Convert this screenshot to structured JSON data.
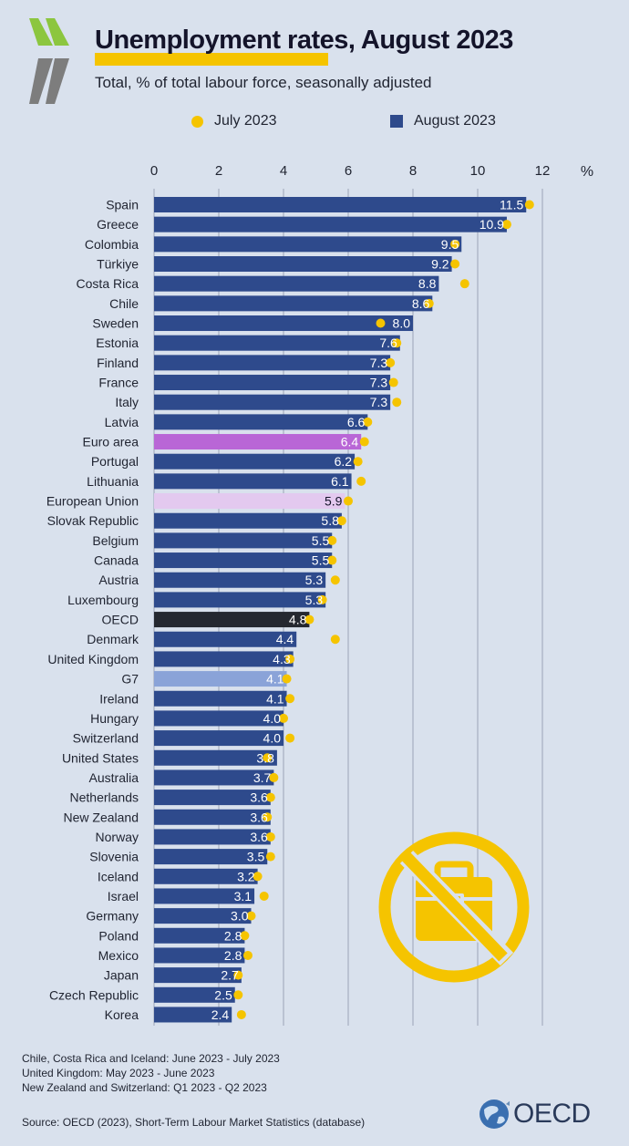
{
  "header": {
    "title": "Unemployment rates, August 2023",
    "subtitle": "Total, % of total labour force, seasonally adjusted"
  },
  "legend": {
    "july_label": "July 2023",
    "august_label": "August 2023"
  },
  "colors": {
    "bar_default": "#2e4a8c",
    "bar_euro_area": "#b966d6",
    "bar_european_union": "#e3c9ef",
    "bar_oecd": "#252830",
    "bar_g7": "#8aa3d8",
    "july_dot": "#f5c400",
    "background": "#d9e1ed",
    "grid": "#9aa4b6"
  },
  "chart_data": {
    "type": "bar",
    "orientation": "horizontal",
    "unit_label": "%",
    "xlim": [
      0,
      12
    ],
    "xticks": [
      0,
      2,
      4,
      6,
      8,
      10,
      12
    ],
    "grid": true,
    "legend_position": "top",
    "categories": [
      "Spain",
      "Greece",
      "Colombia",
      "Türkiye",
      "Costa Rica",
      "Chile",
      "Sweden",
      "Estonia",
      "Finland",
      "France",
      "Italy",
      "Latvia",
      "Euro area",
      "Portugal",
      "Lithuania",
      "European Union",
      "Slovak Republic",
      "Belgium",
      "Canada",
      "Austria",
      "Luxembourg",
      "OECD",
      "Denmark",
      "United Kingdom",
      "G7",
      "Ireland",
      "Hungary",
      "Switzerland",
      "United States",
      "Australia",
      "Netherlands",
      "New Zealand",
      "Norway",
      "Slovenia",
      "Iceland",
      "Israel",
      "Germany",
      "Poland",
      "Mexico",
      "Japan",
      "Czech Republic",
      "Korea"
    ],
    "series": [
      {
        "name": "August 2023",
        "marker": "bar",
        "values": [
          11.5,
          10.9,
          9.5,
          9.2,
          8.8,
          8.6,
          8.0,
          7.6,
          7.3,
          7.3,
          7.3,
          6.6,
          6.4,
          6.2,
          6.1,
          5.9,
          5.8,
          5.5,
          5.5,
          5.3,
          5.3,
          4.8,
          4.4,
          4.3,
          4.1,
          4.1,
          4.0,
          4.0,
          3.8,
          3.7,
          3.6,
          3.6,
          3.6,
          3.5,
          3.2,
          3.1,
          3.0,
          2.8,
          2.8,
          2.7,
          2.5,
          2.4
        ],
        "labels": [
          "11.5",
          "10.9",
          "9.5",
          "9.2",
          "8.8",
          "8.6",
          "8.0",
          "7.6",
          "7.3",
          "7.3",
          "7.3",
          "6.6",
          "6.4",
          "6.2",
          "6.1",
          "5.9",
          "5.8",
          "5.5",
          "5.5",
          "5.3",
          "5.3",
          "4.8",
          "4.4",
          "4.3",
          "4.1",
          "4.1",
          "4.0",
          "4.0",
          "3.8",
          "3.7",
          "3.6",
          "3.6",
          "3.6",
          "3.5",
          "3.2",
          "3.1",
          "3.0",
          "2.8",
          "2.8",
          "2.7",
          "2.5",
          "2.4"
        ]
      },
      {
        "name": "July 2023",
        "marker": "dot",
        "values": [
          11.6,
          10.9,
          9.3,
          9.3,
          9.6,
          8.5,
          7.0,
          7.5,
          7.3,
          7.4,
          7.5,
          6.6,
          6.5,
          6.3,
          6.4,
          6.0,
          5.8,
          5.5,
          5.5,
          5.6,
          5.2,
          4.8,
          5.6,
          4.2,
          4.1,
          4.2,
          4.0,
          4.2,
          3.5,
          3.7,
          3.6,
          3.5,
          3.6,
          3.6,
          3.2,
          3.4,
          3.0,
          2.8,
          2.9,
          2.6,
          2.6,
          2.7
        ]
      }
    ],
    "highlight_colors": {
      "Euro area": "bar_euro_area",
      "European Union": "bar_european_union",
      "OECD": "bar_oecd",
      "G7": "bar_g7"
    }
  },
  "footnotes": [
    "Chile, Costa Rica and Iceland: June 2023 - July 2023",
    "United Kingdom: May 2023 - June 2023",
    "New Zealand and Switzerland: Q1 2023 - Q2 2023"
  ],
  "source": "Source: OECD (2023), Short-Term Labour Market Statistics (database)",
  "logo": {
    "text": "OECD",
    "icon": "oecd-globe-icon",
    "decorative_icon": "no-briefcase-icon"
  }
}
